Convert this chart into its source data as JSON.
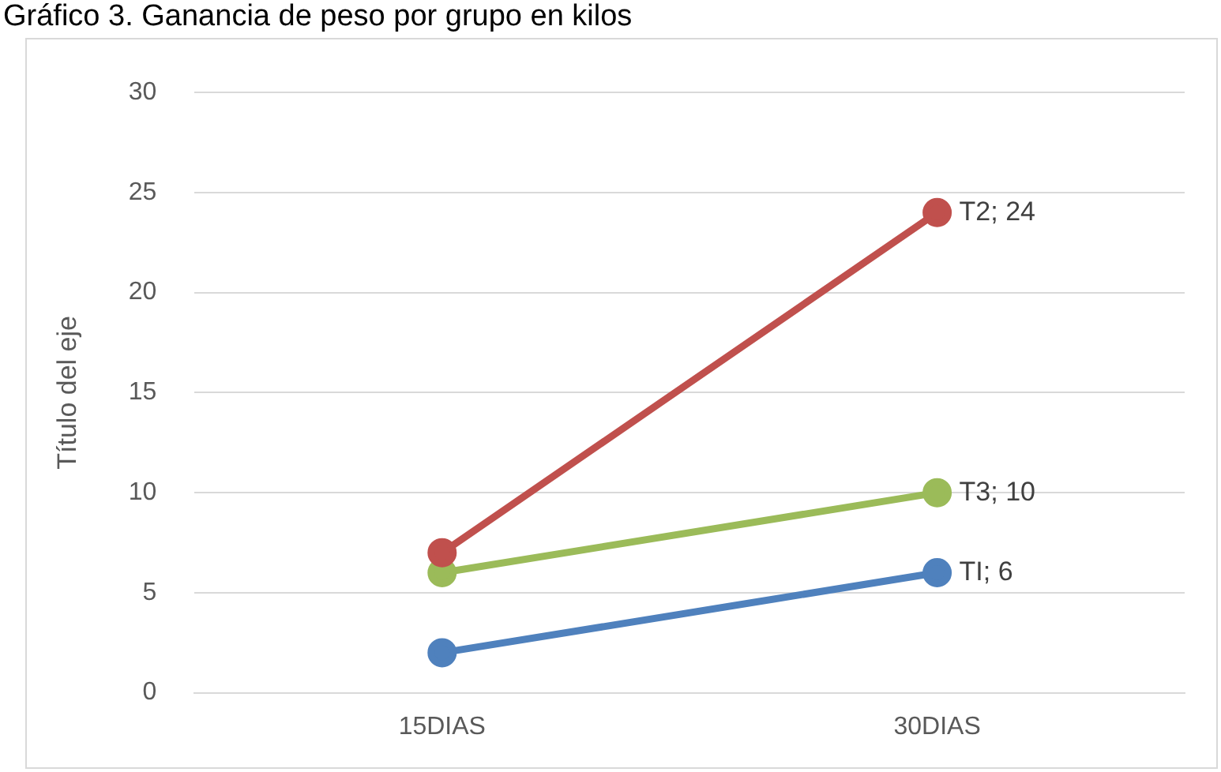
{
  "chart_data": {
    "type": "line",
    "title": "Gráfico 3. Ganancia de peso por grupo en kilos",
    "ylabel": "Título del eje",
    "categories": [
      "15DIAS",
      "30DIAS"
    ],
    "series": [
      {
        "color": "#4f81bd",
        "values": [
          2,
          6
        ],
        "value_labels": [
          null,
          "TI; 6"
        ]
      },
      {
        "color": "#c0504d",
        "values": [
          7,
          24
        ],
        "value_labels": [
          null,
          "T2; 24"
        ]
      },
      {
        "color": "#9bbb59",
        "values": [
          6,
          10
        ],
        "value_labels": [
          null,
          "T3; 10"
        ]
      }
    ],
    "ylim": [
      0,
      30
    ],
    "yticks": [
      0,
      5,
      10,
      15,
      20,
      25,
      30
    ],
    "grid": "y",
    "legend": false,
    "marker": "circle",
    "line_style": "solid"
  }
}
